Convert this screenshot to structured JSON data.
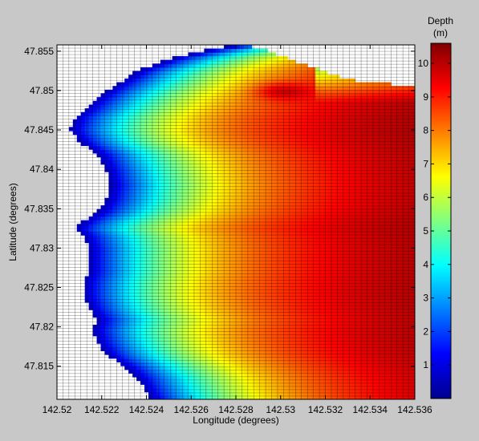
{
  "chart_data": {
    "type": "heatmap",
    "title": "",
    "xlabel": "Longitude (degrees)",
    "ylabel": "Latitude (degrees)",
    "xlim": [
      142.52,
      142.536
    ],
    "ylim": [
      47.8108,
      47.8558
    ],
    "x_ticks": [
      "142.52",
      "142.522",
      "142.524",
      "142.526",
      "142.528",
      "142.53",
      "142.532",
      "142.534",
      "142.536"
    ],
    "y_ticks": [
      "47.815",
      "47.82",
      "47.825",
      "47.83",
      "47.835",
      "47.84",
      "47.845",
      "47.85",
      "47.855"
    ],
    "colorbar": {
      "title_line1": "Depth",
      "title_line2": "(m)",
      "range": [
        0,
        10.6
      ],
      "ticks": [
        "1",
        "2",
        "3",
        "4",
        "5",
        "6",
        "7",
        "8",
        "9",
        "10"
      ],
      "colormap": "jet"
    },
    "grid": "mesh lines shown (white cells are land / no data)",
    "shoreline_west_lon_by_lat": [
      [
        47.8108,
        142.5242
      ],
      [
        47.8135,
        142.5236
      ],
      [
        47.815,
        142.523
      ],
      [
        47.8165,
        142.5222
      ],
      [
        47.818,
        142.5218
      ],
      [
        47.8195,
        142.5216
      ],
      [
        47.821,
        142.5218
      ],
      [
        47.8225,
        142.5214
      ],
      [
        47.824,
        142.5212
      ],
      [
        47.8255,
        142.5212
      ],
      [
        47.827,
        142.5214
      ],
      [
        47.8285,
        142.5214
      ],
      [
        47.83,
        142.5214
      ],
      [
        47.8315,
        142.5212
      ],
      [
        47.8325,
        142.5208
      ],
      [
        47.8335,
        142.5212
      ],
      [
        47.8345,
        142.5218
      ],
      [
        47.836,
        142.5222
      ],
      [
        47.838,
        142.5224
      ],
      [
        47.84,
        142.5222
      ],
      [
        47.842,
        142.5218
      ],
      [
        47.8435,
        142.521
      ],
      [
        47.845,
        142.5206
      ],
      [
        47.8465,
        142.5208
      ],
      [
        47.848,
        142.5214
      ],
      [
        47.8495,
        142.522
      ],
      [
        47.851,
        142.5228
      ],
      [
        47.8525,
        142.5236
      ],
      [
        47.854,
        142.525
      ],
      [
        47.8552,
        142.5268
      ],
      [
        47.8558,
        142.528
      ]
    ],
    "shoreline_north_lat_by_lon": [
      [
        142.528,
        47.8558
      ],
      [
        142.5286,
        47.8556
      ],
      [
        142.5292,
        47.8553
      ],
      [
        142.5298,
        47.8546
      ],
      [
        142.5304,
        47.854
      ],
      [
        142.531,
        47.8534
      ],
      [
        142.5316,
        47.8528
      ],
      [
        142.5322,
        47.8522
      ],
      [
        142.533,
        47.8515
      ],
      [
        142.534,
        47.851
      ],
      [
        142.535,
        47.8508
      ],
      [
        142.536,
        47.8508
      ]
    ],
    "depth_profile_note": "depth increases eastward from ~0-2 m at the western shore to ~10.5 m near the east edge; a deep (~9-10 m) patch lies near 142.529-142.531, 47.849-47.851"
  },
  "colors": {
    "figure_bg": "#c8c8c8",
    "axes_bg": "#ffffff",
    "mesh_line": "#000000"
  }
}
